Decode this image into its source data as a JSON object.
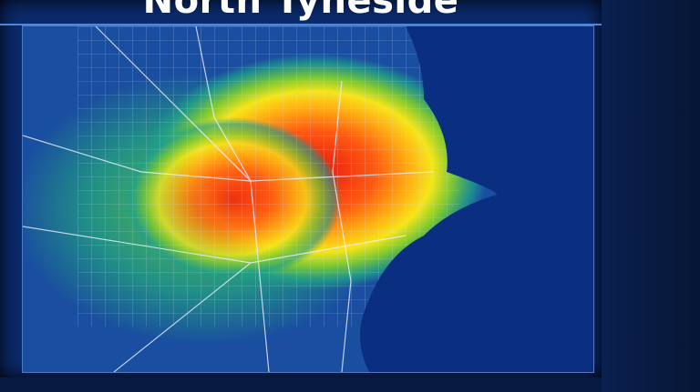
{
  "title": "North Tyneside",
  "map": {
    "type": "heatmap overlay",
    "colors": {
      "background": "#0b2a6a",
      "sea": "#0a2f80",
      "land": "#1a4ea0",
      "low": "#1f9f8a",
      "mid_low": "#7dc832",
      "mid": "#f5e51a",
      "mid_high": "#ff8a10",
      "high": "#e8130f",
      "grid": "#cfe3ff"
    }
  }
}
